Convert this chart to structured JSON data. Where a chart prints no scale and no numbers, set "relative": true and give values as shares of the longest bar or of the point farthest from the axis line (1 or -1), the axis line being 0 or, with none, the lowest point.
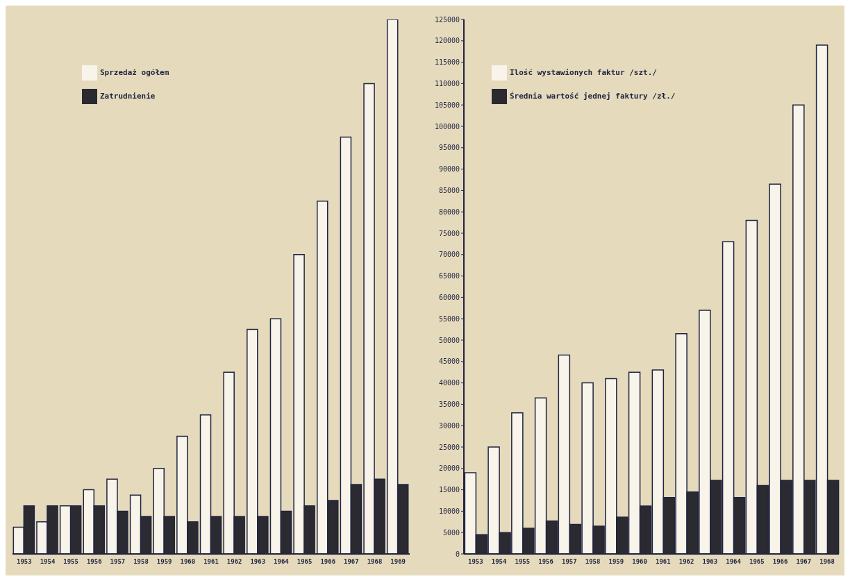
{
  "chart_data": [
    {
      "type": "bar",
      "relative": true,
      "categories": [
        "1953",
        "1954",
        "1955",
        "1956",
        "1957",
        "1958",
        "1959",
        "1960",
        "1961",
        "1962",
        "1963",
        "1964",
        "1965",
        "1966",
        "1967",
        "1968",
        "1969"
      ],
      "series": [
        {
          "name": "Sprzedaż ogółem",
          "color": "#f8f4ea",
          "values": [
            0.05,
            0.06,
            0.09,
            0.12,
            0.14,
            0.11,
            0.16,
            0.22,
            0.26,
            0.34,
            0.42,
            0.44,
            0.56,
            0.66,
            0.78,
            0.88,
            1
          ]
        },
        {
          "name": "Zatrudnienie",
          "color": "#2b2a30",
          "values": [
            0.09,
            0.09,
            0.09,
            0.09,
            0.08,
            0.07,
            0.07,
            0.06,
            0.07,
            0.07,
            0.07,
            0.08,
            0.09,
            0.1,
            0.13,
            0.14,
            0.13
          ]
        }
      ],
      "legend": "top left",
      "grid": false
    },
    {
      "type": "bar",
      "categories": [
        "1953",
        "1954",
        "1955",
        "1956",
        "1957",
        "1958",
        "1959",
        "1960",
        "1961",
        "1962",
        "1963",
        "1964",
        "1965",
        "1966",
        "1967",
        "1968"
      ],
      "series": [
        {
          "name": "Ilość wystawionych faktur /szt./",
          "color": "#f8f4ea",
          "values": [
            19000,
            25000,
            33000,
            36500,
            46500,
            40000,
            41000,
            42500,
            43000,
            51500,
            57000,
            73000,
            78000,
            86500,
            105000,
            119000
          ]
        },
        {
          "name": "Średnia wartość jednej faktury /zł./",
          "color": "#2b2a30",
          "values": [
            4500,
            5000,
            6000,
            7700,
            6900,
            6500,
            8600,
            11200,
            13200,
            14500,
            17200,
            13200,
            16000,
            17200,
            17200,
            17200
          ]
        }
      ],
      "ylim": [
        0,
        125000
      ],
      "yticks": [
        0,
        5000,
        10000,
        15000,
        20000,
        25000,
        30000,
        35000,
        40000,
        45000,
        50000,
        55000,
        60000,
        65000,
        70000,
        75000,
        80000,
        85000,
        90000,
        95000,
        100000,
        105000,
        110000,
        115000,
        120000,
        125000
      ],
      "legend": "top left",
      "grid": false
    }
  ]
}
